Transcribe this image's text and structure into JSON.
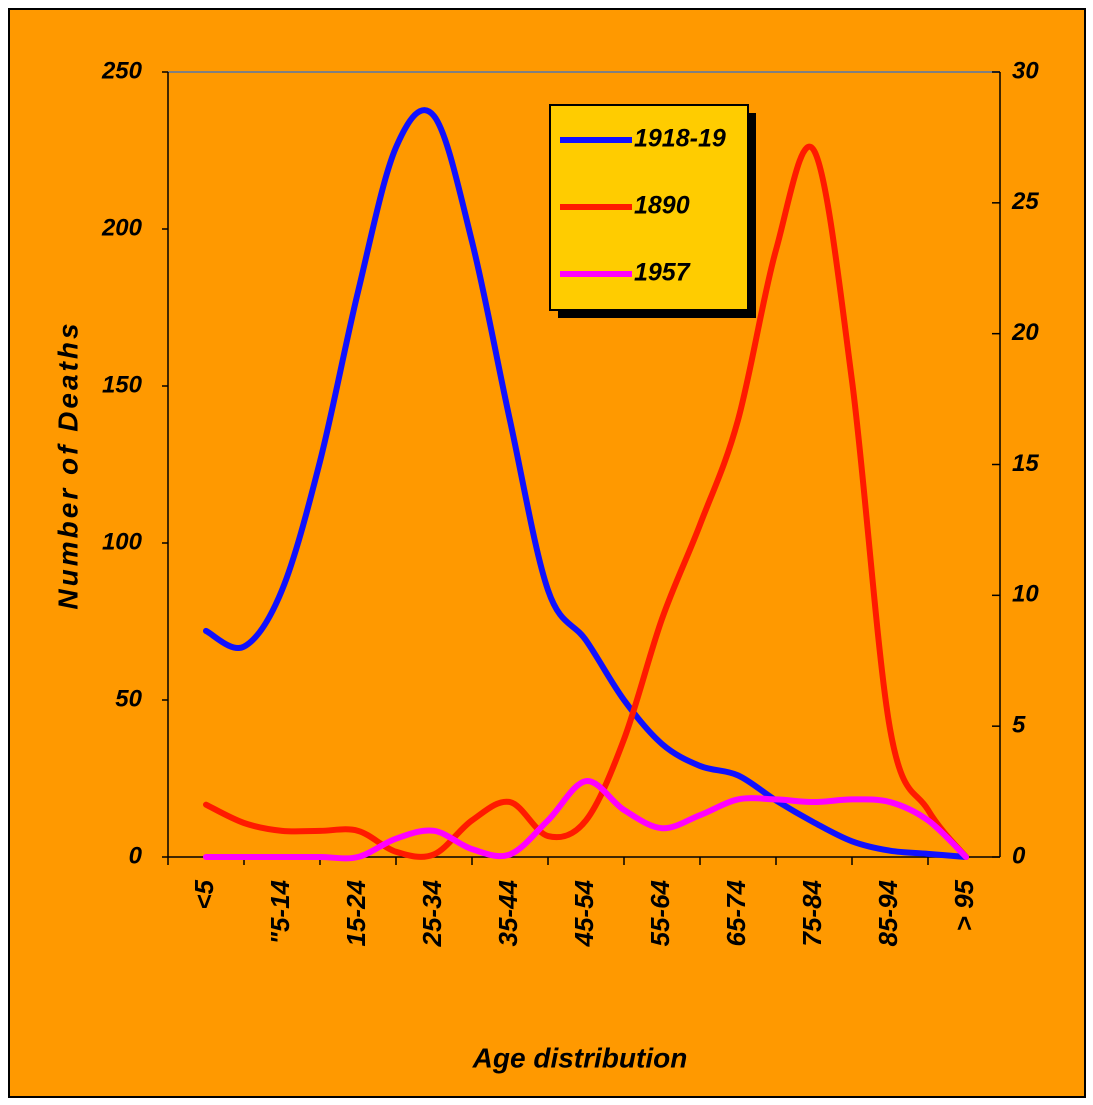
{
  "chart_data": {
    "type": "line",
    "ylabel": "Number of Deaths",
    "xlabel": "Age distribution",
    "categories": [
      "<5",
      null,
      "\"5-14",
      null,
      "15-24",
      null,
      "25-34",
      null,
      "35-44",
      null,
      "45-54",
      null,
      "55-64",
      null,
      "65-74",
      null,
      "75-84",
      null,
      "85-94",
      null,
      "> 95"
    ],
    "ylim": [
      0,
      250
    ],
    "yticks": [
      0,
      50,
      100,
      150,
      200,
      250
    ],
    "y2lim": [
      0,
      30
    ],
    "y2ticks": [
      0,
      5,
      10,
      15,
      20,
      25,
      30
    ],
    "series": [
      {
        "name": "1918-19",
        "color": "#1010ff",
        "values": [
          72,
          67,
          85,
          126,
          180,
          226,
          236,
          196,
          139,
          85,
          69,
          50,
          36,
          29,
          26,
          18,
          11,
          5,
          2,
          1,
          0
        ]
      },
      {
        "name": "1890",
        "color": "#ff1a00",
        "axis": "y2",
        "values": [
          2,
          1.3,
          1,
          1,
          1,
          0.2,
          0.1,
          1.4,
          2.1,
          0.8,
          1.4,
          4.5,
          9.1,
          12.7,
          16.7,
          23.2,
          27,
          18.2,
          4.9,
          1.8,
          0
        ]
      },
      {
        "name": "1957",
        "color": "#ff00ff",
        "axis": "y2",
        "values": [
          0,
          0,
          0,
          0,
          0,
          0.7,
          1,
          0.3,
          0.1,
          1.4,
          2.9,
          1.8,
          1.1,
          1.6,
          2.2,
          2.2,
          2.1,
          2.2,
          2.1,
          1.4,
          0
        ]
      }
    ]
  }
}
